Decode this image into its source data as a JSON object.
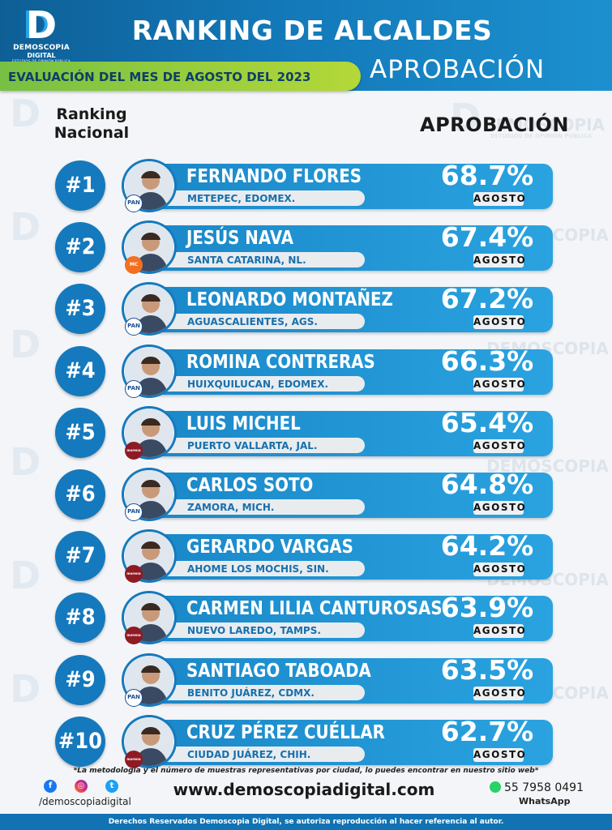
{
  "brand": {
    "logo_letter": "D",
    "logo_line1": "DEMOSCOPIA",
    "logo_line2": "DIGITAL",
    "logo_line3": "ESTUDIOS DE OPINIÓN PÚBLICA",
    "watermark_line1": "DEMOSCOPIA",
    "watermark_line2": "ESTUDIOS DE OPINIÓN PÚBLICA"
  },
  "header": {
    "title": "RANKING DE ALCALDES",
    "evaluation": "EVALUACIÓN DEL MES DE AGOSTO DEL 2023",
    "approval": "APROBACIÓN"
  },
  "columns": {
    "ranking": "Ranking Nacional",
    "approval": "APROBACIÓN"
  },
  "month_label": "AGOSTO",
  "ranking": [
    {
      "rank": "#1",
      "name": "FERNANDO FLORES",
      "city": "METEPEC, EDOMEX.",
      "approval": "68.7%",
      "party": "PAN"
    },
    {
      "rank": "#2",
      "name": "JESÚS NAVA",
      "city": "SANTA CATARINA, NL.",
      "approval": "67.4%",
      "party": "MC"
    },
    {
      "rank": "#3",
      "name": "LEONARDO MONTAÑEZ",
      "city": "AGUASCALIENTES, AGS.",
      "approval": "67.2%",
      "party": "PAN"
    },
    {
      "rank": "#4",
      "name": "ROMINA CONTRERAS",
      "city": "HUIXQUILUCAN, EDOMEX.",
      "approval": "66.3%",
      "party": "PAN"
    },
    {
      "rank": "#5",
      "name": "LUIS MICHEL",
      "city": "PUERTO VALLARTA, JAL.",
      "approval": "65.4%",
      "party": "morena"
    },
    {
      "rank": "#6",
      "name": "CARLOS SOTO",
      "city": "ZAMORA, MICH.",
      "approval": "64.8%",
      "party": "PAN"
    },
    {
      "rank": "#7",
      "name": "GERARDO VARGAS",
      "city": "AHOME LOS MOCHIS, SIN.",
      "approval": "64.2%",
      "party": "morena"
    },
    {
      "rank": "#8",
      "name": "CARMEN LILIA CANTUROSAS",
      "city": "NUEVO LAREDO, TAMPS.",
      "approval": "63.9%",
      "party": "morena"
    },
    {
      "rank": "#9",
      "name": "SANTIAGO TABOADA",
      "city": "BENITO JUÁREZ, CDMX.",
      "approval": "63.5%",
      "party": "PAN"
    },
    {
      "rank": "#10",
      "name": "CRUZ PÉREZ CUÉLLAR",
      "city": "CIUDAD JUÁREZ, CHIH.",
      "approval": "62.7%",
      "party": "morena"
    }
  ],
  "footer": {
    "note": "*La metodología y el número de muestras representativas por ciudad, lo puedes encontrar en nuestro sitio web*",
    "social_handle": "/demoscopiadigital",
    "website": "www.demoscopiadigital.com",
    "phone": "55 7958 0491",
    "whatsapp_label": "WhatsApp",
    "rights": "Derechos Reservados Demoscopia Digital, se autoriza reproducción al hacer referencia al autor."
  },
  "colors": {
    "primary_blue": "#1579bd",
    "bar_blue": "#2aa3e0",
    "green": "#76c043",
    "morena": "#8e1b24",
    "mc": "#f36f21"
  }
}
